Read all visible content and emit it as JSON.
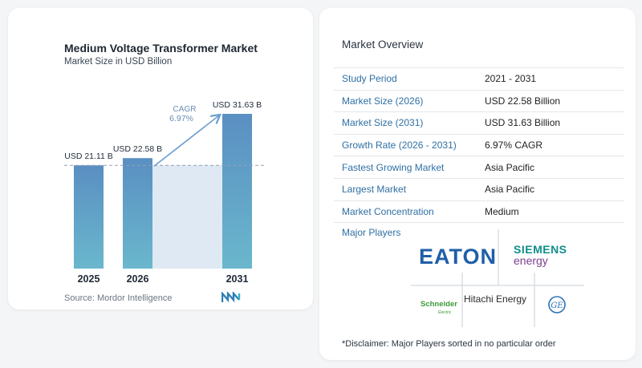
{
  "chart_title": "Medium Voltage Transformer Market",
  "chart_subtitle": "Market Size in USD Billion",
  "source": "Source:  Mordor Intelligence",
  "cagr_label": "CAGR",
  "cagr_value": "6.97%",
  "chart_data": {
    "type": "bar",
    "categories": [
      "2025",
      "2026",
      "2031"
    ],
    "values": [
      21.11,
      22.58,
      31.63
    ],
    "value_labels": [
      "USD 21.11 B",
      "USD 22.58 B",
      "USD 31.63 B"
    ],
    "title": "Medium Voltage Transformer Market",
    "subtitle": "Market Size in USD Billion",
    "ylim": [
      0,
      31.63
    ],
    "grid": false
  },
  "overview": {
    "title": "Market Overview",
    "rows": [
      {
        "key": "Study Period",
        "value": "2021 - 2031"
      },
      {
        "key": "Market Size (2026)",
        "value": "USD 22.58 Billion"
      },
      {
        "key": "Market Size (2031)",
        "value": "USD 31.63 Billion"
      },
      {
        "key": "Growth Rate (2026 - 2031)",
        "value": "6.97% CAGR"
      },
      {
        "key": "Fastest Growing Market",
        "value": "Asia Pacific"
      },
      {
        "key": "Largest Market",
        "value": "Asia Pacific"
      },
      {
        "key": "Market Concentration",
        "value": "Medium"
      }
    ]
  },
  "major_players": {
    "title": "Major Players",
    "logos": [
      "EATON",
      "SIEMENS energy",
      "Schneider Electric",
      "Hitachi Energy",
      "GE"
    ],
    "hitachi_text": "Hitachi Energy"
  },
  "disclaimer": "*Disclaimer: Major Players sorted in no particular order",
  "colors": {
    "bar": "#5c95c4",
    "bar_bottom": "#6db8cc",
    "shade": "#dfe9f3",
    "accent": "#2f6fa3",
    "eaton": "#1f5fa8",
    "siemens": "#0f8f8a",
    "siemens_energy": "#7a3e8e",
    "schneider": "#3c9a3a",
    "ge": "#2a73b8"
  }
}
